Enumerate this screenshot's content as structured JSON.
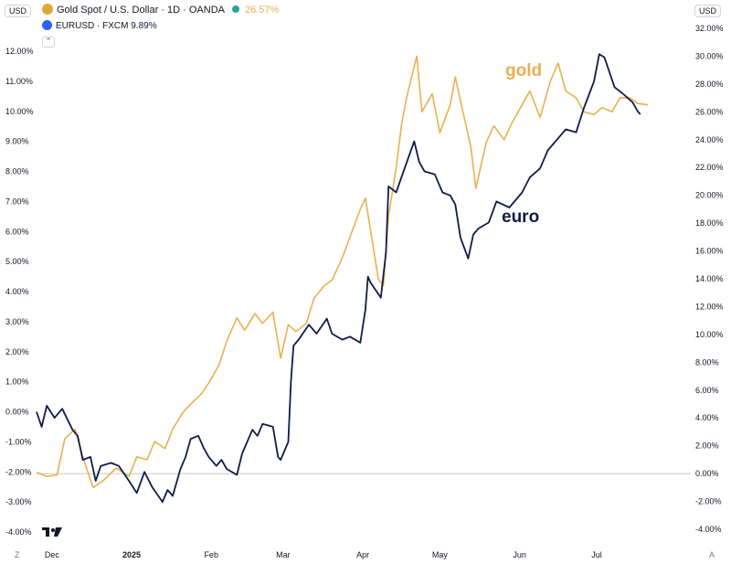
{
  "header": {
    "currency_left": "USD",
    "currency_right": "USD",
    "main_symbol": "Gold Spot / U.S. Dollar · 1D · OANDA",
    "main_change": "26.57%",
    "compare_symbol": "EURUSD · FXCM",
    "compare_change": "9.89%",
    "collapse_icon": "chevron-up-icon",
    "logo": "tradingview-logo",
    "corner_left": "Z",
    "corner_right": "A"
  },
  "colors": {
    "gold": "#E8B04F",
    "euro": "#0F1C48",
    "axis_text": "#131722",
    "zero_line": "#c8c8c8"
  },
  "chart_data": {
    "type": "line",
    "x_ticks": [
      "Dec",
      "2025",
      "Feb",
      "Mar",
      "Apr",
      "May",
      "Jun",
      "Jul"
    ],
    "x_domain": [
      "2024-11-25",
      "2025-07-22"
    ],
    "y_left": {
      "ticks": [
        "12.00%",
        "11.00%",
        "10.00%",
        "9.00%",
        "8.00%",
        "7.00%",
        "6.00%",
        "5.00%",
        "4.00%",
        "3.00%",
        "2.00%",
        "1.00%",
        "0.00%",
        "-1.00%",
        "-2.00%",
        "-3.00%",
        "-4.00%"
      ],
      "range": [
        -4,
        12
      ],
      "unit": "%"
    },
    "y_right": {
      "ticks": [
        "32.00%",
        "30.00%",
        "28.00%",
        "26.00%",
        "24.00%",
        "22.00%",
        "20.00%",
        "18.00%",
        "16.00%",
        "14.00%",
        "12.00%",
        "10.00%",
        "8.00%",
        "6.00%",
        "4.00%",
        "2.00%",
        "0.00%",
        "-2.00%",
        "-4.00%"
      ],
      "range": [
        -4,
        32
      ],
      "unit": "%"
    },
    "grid": false,
    "series": [
      {
        "name": "gold",
        "axis": "right",
        "color": "#E8B04F",
        "points": [
          [
            "2024-11-25",
            0.1
          ],
          [
            "2024-11-29",
            -0.2
          ],
          [
            "2024-12-03",
            -0.1
          ],
          [
            "2024-12-06",
            2.5
          ],
          [
            "2024-12-10",
            3.2
          ],
          [
            "2024-12-13",
            1.2
          ],
          [
            "2024-12-17",
            -1.0
          ],
          [
            "2024-12-21",
            -0.5
          ],
          [
            "2024-12-26",
            0.4
          ],
          [
            "2024-12-31",
            -0.2
          ],
          [
            "2025-01-03",
            1.2
          ],
          [
            "2025-01-07",
            1.0
          ],
          [
            "2025-01-10",
            2.3
          ],
          [
            "2025-01-14",
            1.8
          ],
          [
            "2025-01-17",
            3.2
          ],
          [
            "2025-01-21",
            4.4
          ],
          [
            "2025-01-24",
            5.0
          ],
          [
            "2025-01-28",
            5.7
          ],
          [
            "2025-01-31",
            6.5
          ],
          [
            "2025-02-04",
            7.8
          ],
          [
            "2025-02-07",
            9.5
          ],
          [
            "2025-02-11",
            11.2
          ],
          [
            "2025-02-14",
            10.3
          ],
          [
            "2025-02-18",
            11.5
          ],
          [
            "2025-02-21",
            10.8
          ],
          [
            "2025-02-25",
            11.6
          ],
          [
            "2025-02-28",
            8.3
          ],
          [
            "2025-03-03",
            10.7
          ],
          [
            "2025-03-06",
            10.2
          ],
          [
            "2025-03-10",
            10.8
          ],
          [
            "2025-03-13",
            12.6
          ],
          [
            "2025-03-17",
            13.5
          ],
          [
            "2025-03-20",
            13.9
          ],
          [
            "2025-03-24",
            15.5
          ],
          [
            "2025-03-27",
            17.0
          ],
          [
            "2025-03-31",
            19.0
          ],
          [
            "2025-04-02",
            19.8
          ],
          [
            "2025-04-04",
            17.5
          ],
          [
            "2025-04-07",
            14.0
          ],
          [
            "2025-04-09",
            13.5
          ],
          [
            "2025-04-11",
            18.5
          ],
          [
            "2025-04-14",
            22.0
          ],
          [
            "2025-04-16",
            25.0
          ],
          [
            "2025-04-18",
            27.0
          ],
          [
            "2025-04-22",
            30.0
          ],
          [
            "2025-04-24",
            26.0
          ],
          [
            "2025-04-28",
            27.3
          ],
          [
            "2025-05-01",
            24.5
          ],
          [
            "2025-05-05",
            26.5
          ],
          [
            "2025-05-07",
            28.5
          ],
          [
            "2025-05-09",
            26.8
          ],
          [
            "2025-05-13",
            23.5
          ],
          [
            "2025-05-15",
            20.5
          ],
          [
            "2025-05-19",
            23.8
          ],
          [
            "2025-05-22",
            25.0
          ],
          [
            "2025-05-26",
            24.0
          ],
          [
            "2025-05-29",
            25.2
          ],
          [
            "2025-06-02",
            26.5
          ],
          [
            "2025-06-05",
            27.5
          ],
          [
            "2025-06-09",
            25.6
          ],
          [
            "2025-06-13",
            28.2
          ],
          [
            "2025-06-16",
            29.5
          ],
          [
            "2025-06-19",
            27.5
          ],
          [
            "2025-06-23",
            27.0
          ],
          [
            "2025-06-26",
            26.0
          ],
          [
            "2025-06-30",
            25.8
          ],
          [
            "2025-07-03",
            26.3
          ],
          [
            "2025-07-07",
            26.0
          ],
          [
            "2025-07-10",
            27.0
          ],
          [
            "2025-07-14",
            27.0
          ],
          [
            "2025-07-17",
            26.6
          ],
          [
            "2025-07-21",
            26.5
          ]
        ]
      },
      {
        "name": "euro",
        "axis": "left",
        "color": "#0F1C48",
        "points": [
          [
            "2024-11-25",
            0.0
          ],
          [
            "2024-11-27",
            -0.5
          ],
          [
            "2024-11-29",
            0.2
          ],
          [
            "2024-12-02",
            -0.2
          ],
          [
            "2024-12-05",
            0.1
          ],
          [
            "2024-12-09",
            -0.6
          ],
          [
            "2024-12-11",
            -0.8
          ],
          [
            "2024-12-13",
            -1.6
          ],
          [
            "2024-12-16",
            -1.5
          ],
          [
            "2024-12-18",
            -2.3
          ],
          [
            "2024-12-20",
            -1.8
          ],
          [
            "2024-12-24",
            -1.7
          ],
          [
            "2024-12-27",
            -1.8
          ],
          [
            "2024-12-31",
            -2.3
          ],
          [
            "2025-01-03",
            -2.7
          ],
          [
            "2025-01-06",
            -2.0
          ],
          [
            "2025-01-09",
            -2.5
          ],
          [
            "2025-01-13",
            -3.0
          ],
          [
            "2025-01-15",
            -2.6
          ],
          [
            "2025-01-17",
            -2.8
          ],
          [
            "2025-01-20",
            -1.9
          ],
          [
            "2025-01-22",
            -1.5
          ],
          [
            "2025-01-24",
            -0.9
          ],
          [
            "2025-01-27",
            -0.8
          ],
          [
            "2025-01-29",
            -1.2
          ],
          [
            "2025-01-31",
            -1.5
          ],
          [
            "2025-02-03",
            -1.8
          ],
          [
            "2025-02-05",
            -1.6
          ],
          [
            "2025-02-07",
            -1.9
          ],
          [
            "2025-02-11",
            -2.1
          ],
          [
            "2025-02-13",
            -1.4
          ],
          [
            "2025-02-17",
            -0.6
          ],
          [
            "2025-02-19",
            -0.8
          ],
          [
            "2025-02-21",
            -0.4
          ],
          [
            "2025-02-25",
            -0.5
          ],
          [
            "2025-02-27",
            -1.5
          ],
          [
            "2025-02-28",
            -1.6
          ],
          [
            "2025-03-03",
            -1.0
          ],
          [
            "2025-03-04",
            1.0
          ],
          [
            "2025-03-05",
            2.2
          ],
          [
            "2025-03-07",
            2.4
          ],
          [
            "2025-03-11",
            2.9
          ],
          [
            "2025-03-14",
            2.6
          ],
          [
            "2025-03-18",
            3.1
          ],
          [
            "2025-03-20",
            2.6
          ],
          [
            "2025-03-24",
            2.4
          ],
          [
            "2025-03-27",
            2.5
          ],
          [
            "2025-03-31",
            2.3
          ],
          [
            "2025-04-02",
            3.4
          ],
          [
            "2025-04-03",
            4.5
          ],
          [
            "2025-04-04",
            4.3
          ],
          [
            "2025-04-08",
            3.8
          ],
          [
            "2025-04-10",
            5.3
          ],
          [
            "2025-04-11",
            7.5
          ],
          [
            "2025-04-14",
            7.3
          ],
          [
            "2025-04-16",
            7.8
          ],
          [
            "2025-04-21",
            9.0
          ],
          [
            "2025-04-23",
            8.3
          ],
          [
            "2025-04-25",
            8.0
          ],
          [
            "2025-04-29",
            7.9
          ],
          [
            "2025-05-02",
            7.3
          ],
          [
            "2025-05-05",
            7.2
          ],
          [
            "2025-05-07",
            6.9
          ],
          [
            "2025-05-09",
            5.8
          ],
          [
            "2025-05-12",
            5.1
          ],
          [
            "2025-05-14",
            5.9
          ],
          [
            "2025-05-16",
            6.1
          ],
          [
            "2025-05-20",
            6.3
          ],
          [
            "2025-05-23",
            7.0
          ],
          [
            "2025-05-28",
            6.8
          ],
          [
            "2025-06-02",
            7.3
          ],
          [
            "2025-06-05",
            7.8
          ],
          [
            "2025-06-09",
            8.1
          ],
          [
            "2025-06-12",
            8.7
          ],
          [
            "2025-06-16",
            9.1
          ],
          [
            "2025-06-19",
            9.4
          ],
          [
            "2025-06-23",
            9.3
          ],
          [
            "2025-06-26",
            10.1
          ],
          [
            "2025-06-30",
            11.0
          ],
          [
            "2025-07-02",
            11.9
          ],
          [
            "2025-07-04",
            11.8
          ],
          [
            "2025-07-08",
            10.8
          ],
          [
            "2025-07-11",
            10.6
          ],
          [
            "2025-07-15",
            10.3
          ],
          [
            "2025-07-17",
            10.0
          ],
          [
            "2025-07-18",
            9.9
          ]
        ]
      }
    ]
  }
}
